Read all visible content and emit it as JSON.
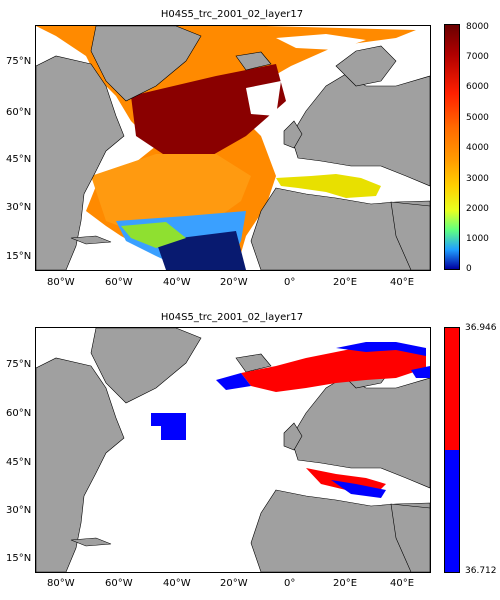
{
  "top_panel": {
    "title": "H04S5_trc_2001_02_layer17",
    "lat_ticks": [
      "75°N",
      "60°N",
      "45°N",
      "30°N",
      "15°N"
    ],
    "lon_ticks": [
      "80°W",
      "60°W",
      "40°W",
      "20°W",
      "0°",
      "20°E",
      "40°E"
    ],
    "colorbar_ticks": [
      "8000",
      "7000",
      "6000",
      "5000",
      "4000",
      "3000",
      "2000",
      "1000",
      "0"
    ]
  },
  "bottom_panel": {
    "title": "H04S5_trc_2001_02_layer17",
    "lat_ticks": [
      "75°N",
      "60°N",
      "45°N",
      "30°N",
      "15°N"
    ],
    "lon_ticks": [
      "80°W",
      "60°W",
      "40°W",
      "20°W",
      "0°",
      "20°E",
      "40°E"
    ],
    "colorbar_ticks": [
      "36.946",
      "36.712"
    ]
  },
  "colors": {
    "land": "#a0a0a0",
    "no_data": "#ffffff",
    "high": "#ff0000",
    "low": "#0000ff"
  }
}
